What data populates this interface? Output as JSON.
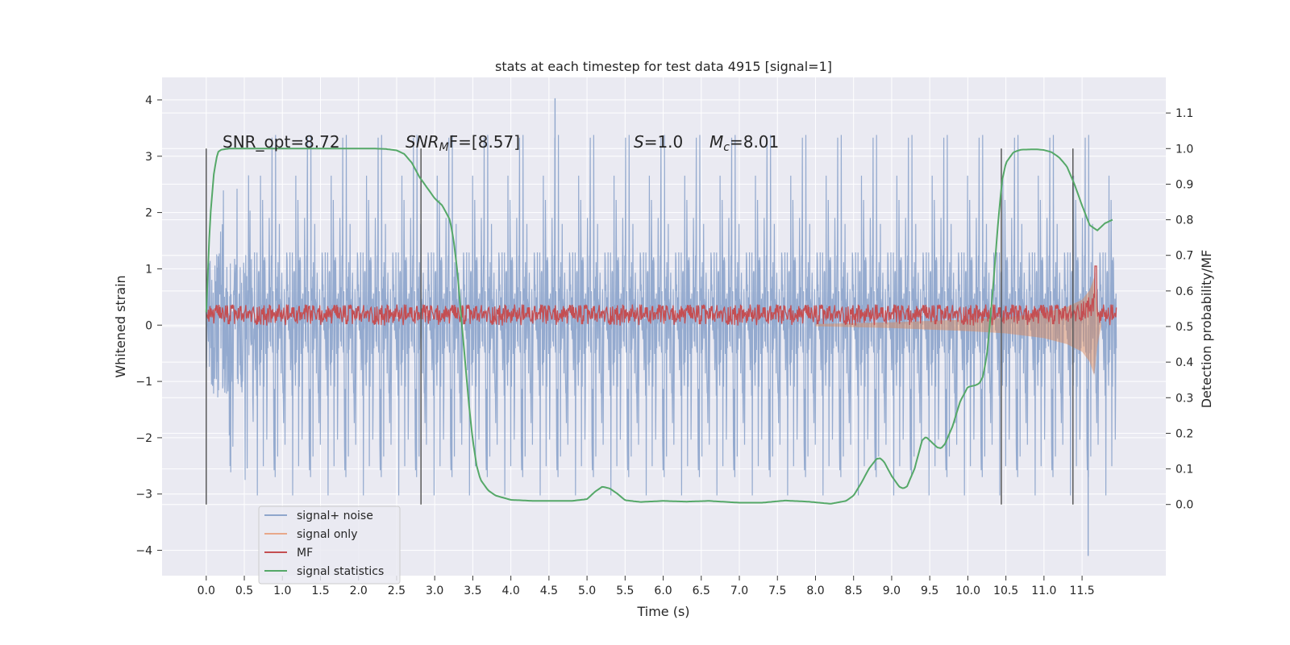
{
  "chart_data": {
    "type": "line",
    "title": "stats at each timestep for test data 4915 [signal=1]",
    "xlabel": "Time (s)",
    "ylabel": "Whitened strain",
    "y2label": "Detection probability/MF",
    "xlim": [
      -0.58,
      12.6
    ],
    "ylim": [
      -4.45,
      4.4
    ],
    "y2lim": [
      -0.2,
      1.2
    ],
    "xticks": [
      0.0,
      0.5,
      1.0,
      1.5,
      2.0,
      2.5,
      3.0,
      3.5,
      4.0,
      4.5,
      5.0,
      5.5,
      6.0,
      6.5,
      7.0,
      7.5,
      8.0,
      8.5,
      9.0,
      9.5,
      10.0,
      10.5,
      11.0,
      11.5
    ],
    "xtick_labels": [
      "0.0",
      "0.5",
      "1.0",
      "1.5",
      "2.0",
      "2.5",
      "3.0",
      "3.5",
      "4.0",
      "4.5",
      "5.0",
      "5.5",
      "6.0",
      "6.5",
      "7.0",
      "7.5",
      "8.0",
      "8.5",
      "9.0",
      "9.5",
      "10.0",
      "10.5",
      "11.0",
      "11.5"
    ],
    "yticks": [
      -4,
      -3,
      -2,
      -1,
      0,
      1,
      2,
      3,
      4
    ],
    "ytick_labels": [
      "−4",
      "−3",
      "−2",
      "−1",
      "0",
      "1",
      "2",
      "3",
      "4"
    ],
    "y2ticks": [
      0.0,
      0.1,
      0.2,
      0.3,
      0.4,
      0.5,
      0.6,
      0.7,
      0.8,
      0.9,
      1.0,
      1.1
    ],
    "y2tick_labels": [
      "0.0",
      "0.1",
      "0.2",
      "0.3",
      "0.4",
      "0.5",
      "0.6",
      "0.7",
      "0.8",
      "0.9",
      "1.0",
      "1.1"
    ],
    "vlines": [
      0.0,
      2.82,
      10.44,
      11.38
    ],
    "annotations": {
      "snr_opt": "SNR_opt=8.72",
      "snr_mf_sym": "SNR",
      "snr_mf_sub": "M",
      "snr_mf_rest": "F=[8.57]",
      "s_sym": "S",
      "s_rest": "=1.0",
      "mc_sym": "M",
      "mc_sub": "c",
      "mc_rest": "=8.01"
    },
    "legend": {
      "position": "lower-left",
      "entries": [
        "signal+ noise",
        "signal only",
        "MF",
        "signal statistics"
      ]
    },
    "colors": {
      "noise": "#8fa6cc",
      "signal": "#dd8452",
      "mf": "#c44e52",
      "stat": "#55a868",
      "vline": "#595959",
      "panel": "#eaeaf2",
      "grid": "#ffffff"
    },
    "series": [
      {
        "name": "signal+ noise",
        "axis": "left",
        "description": "whitened strain, t 0.0-11.95 s, core range about -1.4 to 1.3 with spikes to +4.0 and -4.1",
        "t_range": [
          0.0,
          11.95
        ],
        "peak_max": 4.03,
        "peak_max_t": 4.58,
        "peak_min": -4.1,
        "peak_min_t": 11.58
      },
      {
        "name": "signal only",
        "axis": "left",
        "description": "chirp envelope, amplitude growing toward merger",
        "t": [
          8.0,
          9.0,
          10.0,
          10.5,
          11.0,
          11.3,
          11.5,
          11.6,
          11.66,
          11.7,
          11.75
        ],
        "amp": [
          0.02,
          0.05,
          0.1,
          0.14,
          0.22,
          0.32,
          0.45,
          0.62,
          0.85,
          0.35,
          0.02
        ]
      },
      {
        "name": "MF",
        "axis": "right",
        "description": "matched filter band between about 0.50 and 0.56 with a spike near t=11.68",
        "t_range": [
          0.0,
          11.95
        ],
        "band": [
          0.503,
          0.562
        ],
        "spike_t": 11.68,
        "spike_value": 0.67
      },
      {
        "name": "signal statistics",
        "axis": "right",
        "t": [
          0.0,
          0.05,
          0.1,
          0.15,
          0.2,
          0.3,
          0.5,
          1.0,
          1.5,
          2.0,
          2.2,
          2.35,
          2.5,
          2.6,
          2.7,
          2.8,
          2.9,
          3.0,
          3.1,
          3.2,
          3.25,
          3.3,
          3.35,
          3.4,
          3.45,
          3.5,
          3.55,
          3.6,
          3.7,
          3.8,
          4.0,
          4.3,
          4.6,
          4.8,
          5.0,
          5.1,
          5.2,
          5.3,
          5.4,
          5.5,
          5.7,
          6.0,
          6.3,
          6.6,
          7.0,
          7.3,
          7.6,
          7.9,
          8.2,
          8.4,
          8.5,
          8.6,
          8.7,
          8.8,
          8.85,
          8.9,
          9.0,
          9.1,
          9.15,
          9.2,
          9.3,
          9.4,
          9.45,
          9.5,
          9.6,
          9.65,
          9.7,
          9.8,
          9.9,
          10.0,
          10.1,
          10.15,
          10.2,
          10.25,
          10.3,
          10.35,
          10.4,
          10.45,
          10.5,
          10.6,
          10.7,
          10.9,
          11.0,
          11.1,
          11.2,
          11.3,
          11.4,
          11.5,
          11.6,
          11.7,
          11.8,
          11.9
        ],
        "values": [
          0.54,
          0.8,
          0.93,
          0.99,
          0.997,
          1.0,
          1.0,
          1.0,
          1.0,
          1.0,
          1.0,
          0.999,
          0.995,
          0.985,
          0.96,
          0.92,
          0.89,
          0.86,
          0.84,
          0.8,
          0.74,
          0.65,
          0.52,
          0.4,
          0.28,
          0.18,
          0.11,
          0.07,
          0.04,
          0.025,
          0.013,
          0.01,
          0.01,
          0.01,
          0.015,
          0.035,
          0.05,
          0.045,
          0.03,
          0.012,
          0.007,
          0.01,
          0.008,
          0.01,
          0.005,
          0.005,
          0.011,
          0.008,
          0.002,
          0.01,
          0.025,
          0.06,
          0.1,
          0.128,
          0.13,
          0.12,
          0.08,
          0.05,
          0.045,
          0.05,
          0.1,
          0.18,
          0.19,
          0.18,
          0.16,
          0.158,
          0.17,
          0.22,
          0.29,
          0.33,
          0.335,
          0.34,
          0.36,
          0.42,
          0.53,
          0.66,
          0.8,
          0.91,
          0.96,
          0.99,
          0.997,
          0.998,
          0.996,
          0.99,
          0.975,
          0.95,
          0.9,
          0.84,
          0.785,
          0.77,
          0.79,
          0.8
        ]
      }
    ]
  }
}
